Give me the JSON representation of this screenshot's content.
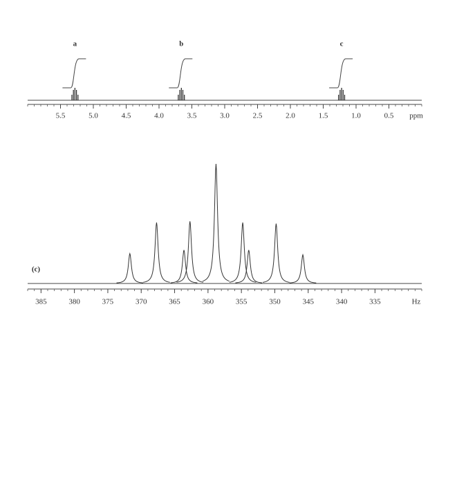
{
  "chart_data": [
    {
      "type": "stick-spectrum",
      "x_label": "ppm",
      "xlim": [
        6.0,
        0
      ],
      "xticks": [
        5.5,
        {
          "value": 5,
          "label": "5.0"
        },
        4.5,
        {
          "value": 4,
          "label": "4.0"
        },
        3.5,
        {
          "value": 3,
          "label": "3.0"
        },
        2.5,
        {
          "value": 2,
          "label": "2.0"
        },
        1.5,
        {
          "value": 1,
          "label": "1.0"
        },
        0.5
      ],
      "peak_labels": [
        "a",
        "b",
        "c"
      ],
      "x": [
        5.28,
        3.66,
        1.22
      ]
    },
    {
      "type": "line-spectrum",
      "panel_label": "(c)",
      "x_label": "Hz",
      "xlim": [
        387,
        328
      ],
      "xticks": [
        385,
        380,
        375,
        370,
        365,
        360,
        355,
        350,
        345,
        340,
        335
      ],
      "x": [
        371.7,
        367.7,
        363.6,
        362.7,
        358.8,
        354.8,
        353.9,
        349.8,
        345.8
      ],
      "values": [
        0.25,
        0.51,
        0.28,
        0.52,
        1.0,
        0.51,
        0.28,
        0.5,
        0.24
      ],
      "ylim": [
        0,
        1
      ]
    }
  ]
}
